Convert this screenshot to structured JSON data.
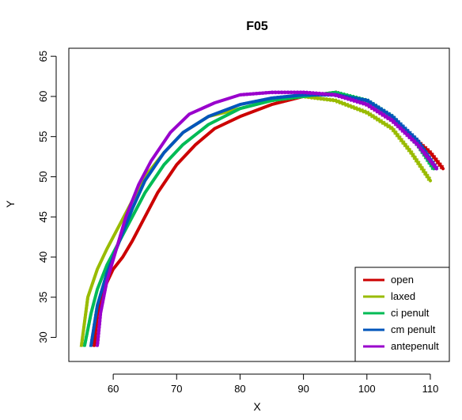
{
  "chart_data": {
    "type": "line",
    "title": "F05",
    "xlabel": "X",
    "ylabel": "Y",
    "xlim": [
      53,
      113
    ],
    "ylim": [
      27,
      66
    ],
    "xticks": [
      60,
      70,
      80,
      90,
      100,
      110
    ],
    "yticks": [
      30,
      35,
      40,
      45,
      50,
      55,
      60,
      65
    ],
    "legend_position": "bottom-right",
    "grid": false,
    "series": [
      {
        "name": "open",
        "color": "#CC0000",
        "x": [
          57.0,
          57.5,
          58.5,
          60,
          61.5,
          63,
          65,
          67,
          70,
          73,
          76,
          80,
          85,
          90,
          95,
          100,
          105,
          110,
          112
        ],
        "y": [
          29,
          33,
          36,
          38.5,
          40,
          42,
          45,
          48,
          51.5,
          54,
          56,
          57.5,
          59,
          60,
          60.5,
          59,
          56.5,
          53,
          51
        ]
      },
      {
        "name": "laxed",
        "color": "#99BB00",
        "x": [
          55.0,
          56,
          57.5,
          59,
          61,
          63,
          65,
          68,
          71,
          75,
          80,
          85,
          90,
          95,
          100,
          104,
          107,
          110
        ],
        "y": [
          29,
          35,
          38.5,
          41,
          44,
          47,
          50,
          53,
          55.5,
          57.5,
          58.5,
          59.5,
          60,
          59.5,
          58,
          56,
          53,
          49.5
        ]
      },
      {
        "name": "ci penult",
        "color": "#00BB55",
        "x": [
          55.5,
          56.5,
          57.5,
          59,
          61,
          63,
          65,
          68,
          71,
          75,
          80,
          85,
          90,
          95,
          100,
          104,
          108,
          110.5
        ],
        "y": [
          29,
          33,
          36,
          39,
          42,
          45,
          48,
          51.5,
          54,
          56.5,
          58.5,
          59.5,
          60,
          60.5,
          59.5,
          57.5,
          54,
          51
        ]
      },
      {
        "name": "cm penult",
        "color": "#0055BB",
        "x": [
          56.5,
          57.5,
          59,
          61,
          63,
          65,
          68,
          71,
          75,
          80,
          85,
          90,
          95,
          100,
          104,
          108,
          111
        ],
        "y": [
          29,
          34,
          38,
          42,
          46,
          49.5,
          53,
          55.5,
          57.5,
          59,
          59.8,
          60.2,
          60.2,
          59.5,
          57.5,
          54.5,
          51
        ]
      },
      {
        "name": "antepenult",
        "color": "#9900CC",
        "x": [
          57.5,
          58,
          59,
          60.5,
          62,
          64,
          66,
          69,
          72,
          76,
          80,
          85,
          90,
          95,
          100,
          104,
          108,
          111
        ],
        "y": [
          29,
          33,
          37,
          41,
          45,
          49,
          52,
          55.5,
          57.8,
          59.2,
          60.2,
          60.5,
          60.5,
          60.2,
          59,
          57,
          54,
          51
        ]
      }
    ]
  }
}
